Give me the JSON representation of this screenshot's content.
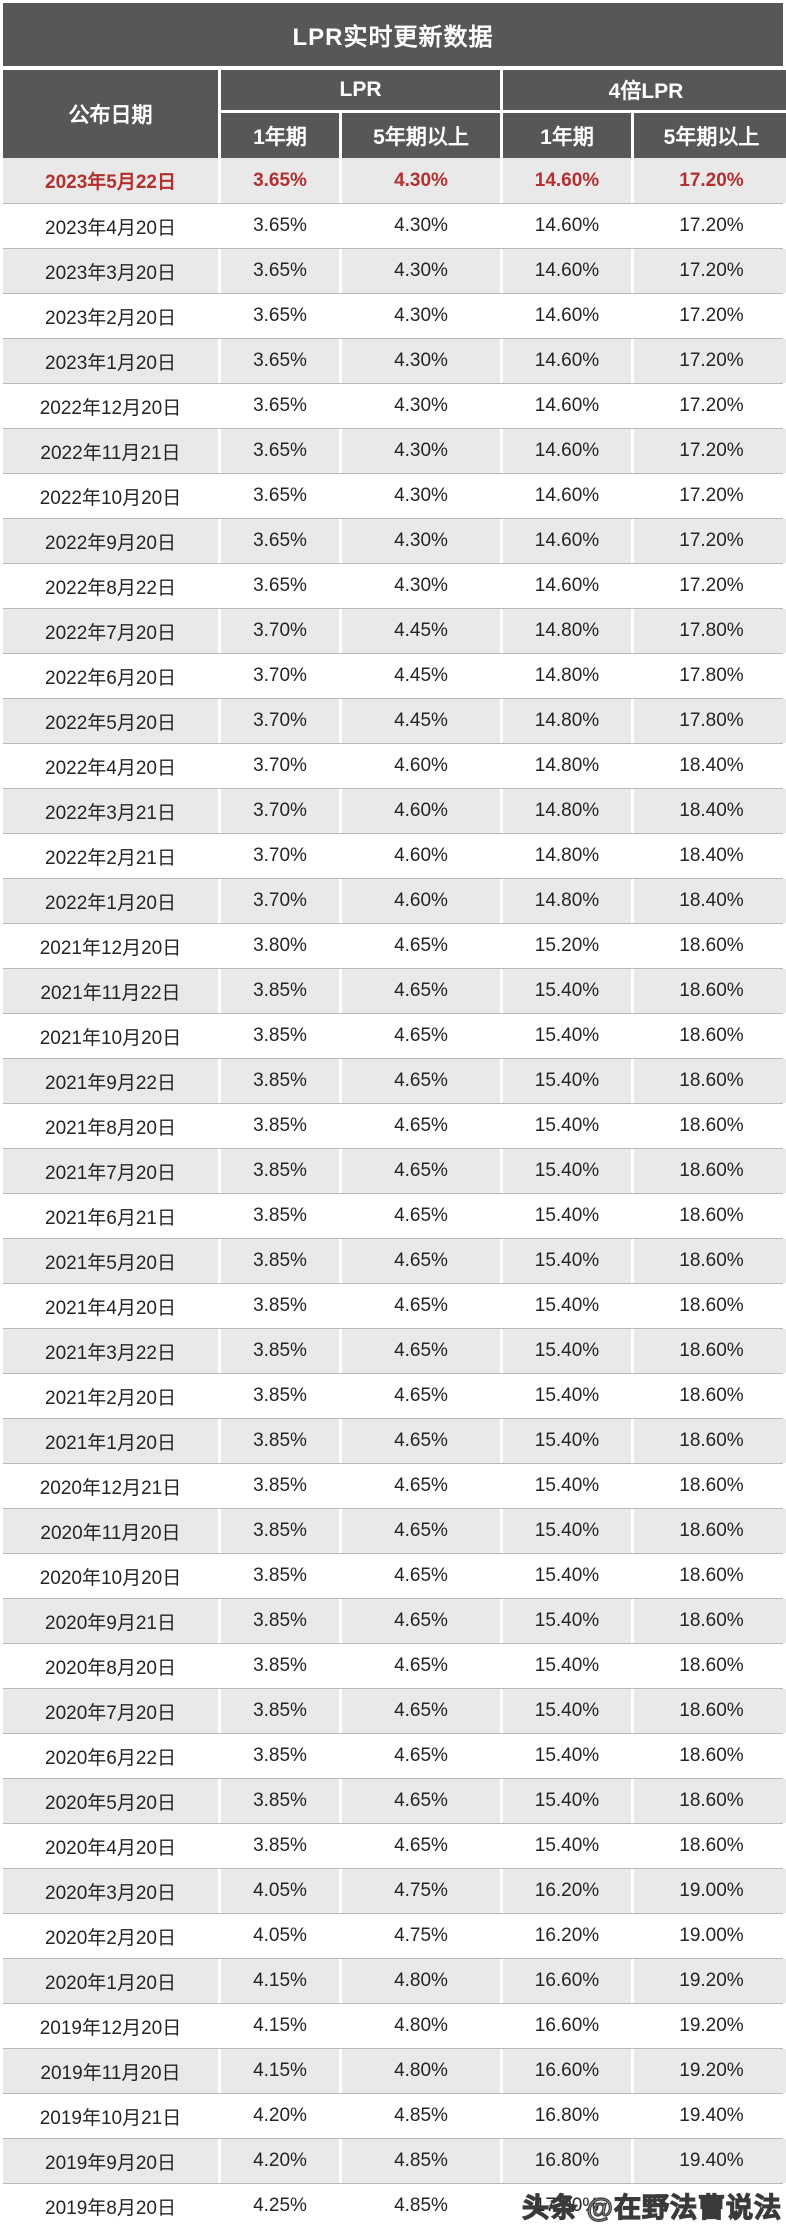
{
  "title": "LPR实时更新数据",
  "table": {
    "date_header": "公布日期",
    "group_headers": [
      "LPR",
      "4倍LPR"
    ],
    "sub_headers": [
      "1年期",
      "5年期以上",
      "1年期",
      "5年期以上"
    ]
  },
  "watermark": {
    "text": "头条 @在野法曹说法"
  },
  "colors": {
    "header_bg": "#57575a",
    "header_text": "#ffffff",
    "highlight_red": "#b4302e",
    "row_alt_bg": "#e9e9e9",
    "row_bg": "#ffffff",
    "row_border": "#b9b9b9",
    "body_text": "#242424"
  },
  "chart_data": {
    "type": "table",
    "title": "LPR实时更新数据",
    "columns": [
      "公布日期",
      "LPR 1年期",
      "LPR 5年期以上",
      "4倍LPR 1年期",
      "4倍LPR 5年期以上"
    ],
    "highlight_row_index": 0,
    "rows": [
      [
        "2023年5月22日",
        "3.65%",
        "4.30%",
        "14.60%",
        "17.20%"
      ],
      [
        "2023年4月20日",
        "3.65%",
        "4.30%",
        "14.60%",
        "17.20%"
      ],
      [
        "2023年3月20日",
        "3.65%",
        "4.30%",
        "14.60%",
        "17.20%"
      ],
      [
        "2023年2月20日",
        "3.65%",
        "4.30%",
        "14.60%",
        "17.20%"
      ],
      [
        "2023年1月20日",
        "3.65%",
        "4.30%",
        "14.60%",
        "17.20%"
      ],
      [
        "2022年12月20日",
        "3.65%",
        "4.30%",
        "14.60%",
        "17.20%"
      ],
      [
        "2022年11月21日",
        "3.65%",
        "4.30%",
        "14.60%",
        "17.20%"
      ],
      [
        "2022年10月20日",
        "3.65%",
        "4.30%",
        "14.60%",
        "17.20%"
      ],
      [
        "2022年9月20日",
        "3.65%",
        "4.30%",
        "14.60%",
        "17.20%"
      ],
      [
        "2022年8月22日",
        "3.65%",
        "4.30%",
        "14.60%",
        "17.20%"
      ],
      [
        "2022年7月20日",
        "3.70%",
        "4.45%",
        "14.80%",
        "17.80%"
      ],
      [
        "2022年6月20日",
        "3.70%",
        "4.45%",
        "14.80%",
        "17.80%"
      ],
      [
        "2022年5月20日",
        "3.70%",
        "4.45%",
        "14.80%",
        "17.80%"
      ],
      [
        "2022年4月20日",
        "3.70%",
        "4.60%",
        "14.80%",
        "18.40%"
      ],
      [
        "2022年3月21日",
        "3.70%",
        "4.60%",
        "14.80%",
        "18.40%"
      ],
      [
        "2022年2月21日",
        "3.70%",
        "4.60%",
        "14.80%",
        "18.40%"
      ],
      [
        "2022年1月20日",
        "3.70%",
        "4.60%",
        "14.80%",
        "18.40%"
      ],
      [
        "2021年12月20日",
        "3.80%",
        "4.65%",
        "15.20%",
        "18.60%"
      ],
      [
        "2021年11月22日",
        "3.85%",
        "4.65%",
        "15.40%",
        "18.60%"
      ],
      [
        "2021年10月20日",
        "3.85%",
        "4.65%",
        "15.40%",
        "18.60%"
      ],
      [
        "2021年9月22日",
        "3.85%",
        "4.65%",
        "15.40%",
        "18.60%"
      ],
      [
        "2021年8月20日",
        "3.85%",
        "4.65%",
        "15.40%",
        "18.60%"
      ],
      [
        "2021年7月20日",
        "3.85%",
        "4.65%",
        "15.40%",
        "18.60%"
      ],
      [
        "2021年6月21日",
        "3.85%",
        "4.65%",
        "15.40%",
        "18.60%"
      ],
      [
        "2021年5月20日",
        "3.85%",
        "4.65%",
        "15.40%",
        "18.60%"
      ],
      [
        "2021年4月20日",
        "3.85%",
        "4.65%",
        "15.40%",
        "18.60%"
      ],
      [
        "2021年3月22日",
        "3.85%",
        "4.65%",
        "15.40%",
        "18.60%"
      ],
      [
        "2021年2月20日",
        "3.85%",
        "4.65%",
        "15.40%",
        "18.60%"
      ],
      [
        "2021年1月20日",
        "3.85%",
        "4.65%",
        "15.40%",
        "18.60%"
      ],
      [
        "2020年12月21日",
        "3.85%",
        "4.65%",
        "15.40%",
        "18.60%"
      ],
      [
        "2020年11月20日",
        "3.85%",
        "4.65%",
        "15.40%",
        "18.60%"
      ],
      [
        "2020年10月20日",
        "3.85%",
        "4.65%",
        "15.40%",
        "18.60%"
      ],
      [
        "2020年9月21日",
        "3.85%",
        "4.65%",
        "15.40%",
        "18.60%"
      ],
      [
        "2020年8月20日",
        "3.85%",
        "4.65%",
        "15.40%",
        "18.60%"
      ],
      [
        "2020年7月20日",
        "3.85%",
        "4.65%",
        "15.40%",
        "18.60%"
      ],
      [
        "2020年6月22日",
        "3.85%",
        "4.65%",
        "15.40%",
        "18.60%"
      ],
      [
        "2020年5月20日",
        "3.85%",
        "4.65%",
        "15.40%",
        "18.60%"
      ],
      [
        "2020年4月20日",
        "3.85%",
        "4.65%",
        "15.40%",
        "18.60%"
      ],
      [
        "2020年3月20日",
        "4.05%",
        "4.75%",
        "16.20%",
        "19.00%"
      ],
      [
        "2020年2月20日",
        "4.05%",
        "4.75%",
        "16.20%",
        "19.00%"
      ],
      [
        "2020年1月20日",
        "4.15%",
        "4.80%",
        "16.60%",
        "19.20%"
      ],
      [
        "2019年12月20日",
        "4.15%",
        "4.80%",
        "16.60%",
        "19.20%"
      ],
      [
        "2019年11月20日",
        "4.15%",
        "4.80%",
        "16.60%",
        "19.20%"
      ],
      [
        "2019年10月21日",
        "4.20%",
        "4.85%",
        "16.80%",
        "19.40%"
      ],
      [
        "2019年9月20日",
        "4.20%",
        "4.85%",
        "16.80%",
        "19.40%"
      ],
      [
        "2019年8月20日",
        "4.25%",
        "4.85%",
        "17.00%",
        ""
      ]
    ]
  }
}
